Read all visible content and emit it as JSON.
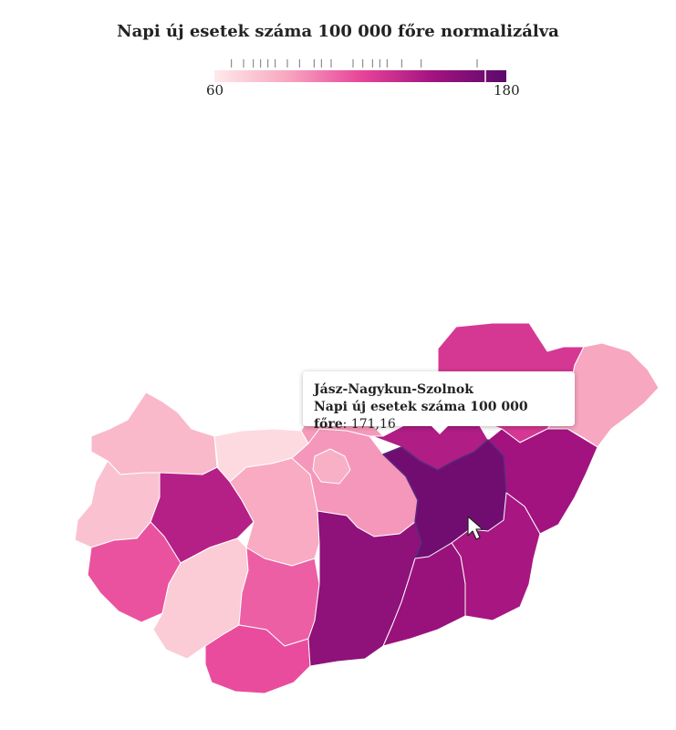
{
  "title": "Napi új esetek száma 100 000 főre normalizálva",
  "legend": {
    "min_label": "60",
    "max_label": "180",
    "min": 60,
    "max": 180,
    "colors": [
      "#ffeaea",
      "#f7a7c0",
      "#e8459a",
      "#a2137f",
      "#5c0a6b"
    ],
    "tick_values": [
      67,
      72,
      76,
      79,
      82,
      85,
      90,
      95,
      101,
      104,
      108,
      117,
      121,
      125,
      128,
      131,
      137,
      145,
      168
    ]
  },
  "tooltip": {
    "region": "Jász-Nagykun-Szolnok",
    "metric_label": "Napi új esetek száma 100 000 főre",
    "value_text": "171,16"
  },
  "chart_data": {
    "type": "choropleth",
    "title": "Napi új esetek száma 100 000 főre normalizálva",
    "scale": [
      60,
      180
    ],
    "selected": "Jász-Nagykun-Szolnok",
    "selected_value": 171.16
  },
  "regions": [
    {
      "id": "gyor-moson-sopron",
      "value": 82
    },
    {
      "id": "vas",
      "value": 78
    },
    {
      "id": "zala",
      "value": 116
    },
    {
      "id": "veszprem",
      "value": 142
    },
    {
      "id": "komarom-esztergom",
      "value": 67
    },
    {
      "id": "fejer",
      "value": 88
    },
    {
      "id": "somogy",
      "value": 74
    },
    {
      "id": "baranya",
      "value": 118
    },
    {
      "id": "tolna",
      "value": 112
    },
    {
      "id": "pest",
      "value": 95
    },
    {
      "id": "budapest",
      "value": 86
    },
    {
      "id": "nograd",
      "value": 94
    },
    {
      "id": "bacs-kiskun",
      "value": 158
    },
    {
      "id": "borsod-abauj-zemplen",
      "value": 128
    },
    {
      "id": "heves",
      "value": 144
    },
    {
      "id": "szabolcs-szatmar-bereg",
      "value": 90
    },
    {
      "id": "hajdu-bihar",
      "value": 150
    },
    {
      "id": "jasz-nagykun-szolnok",
      "value": 171
    },
    {
      "id": "bekes",
      "value": 148
    },
    {
      "id": "csongrad",
      "value": 154
    }
  ]
}
